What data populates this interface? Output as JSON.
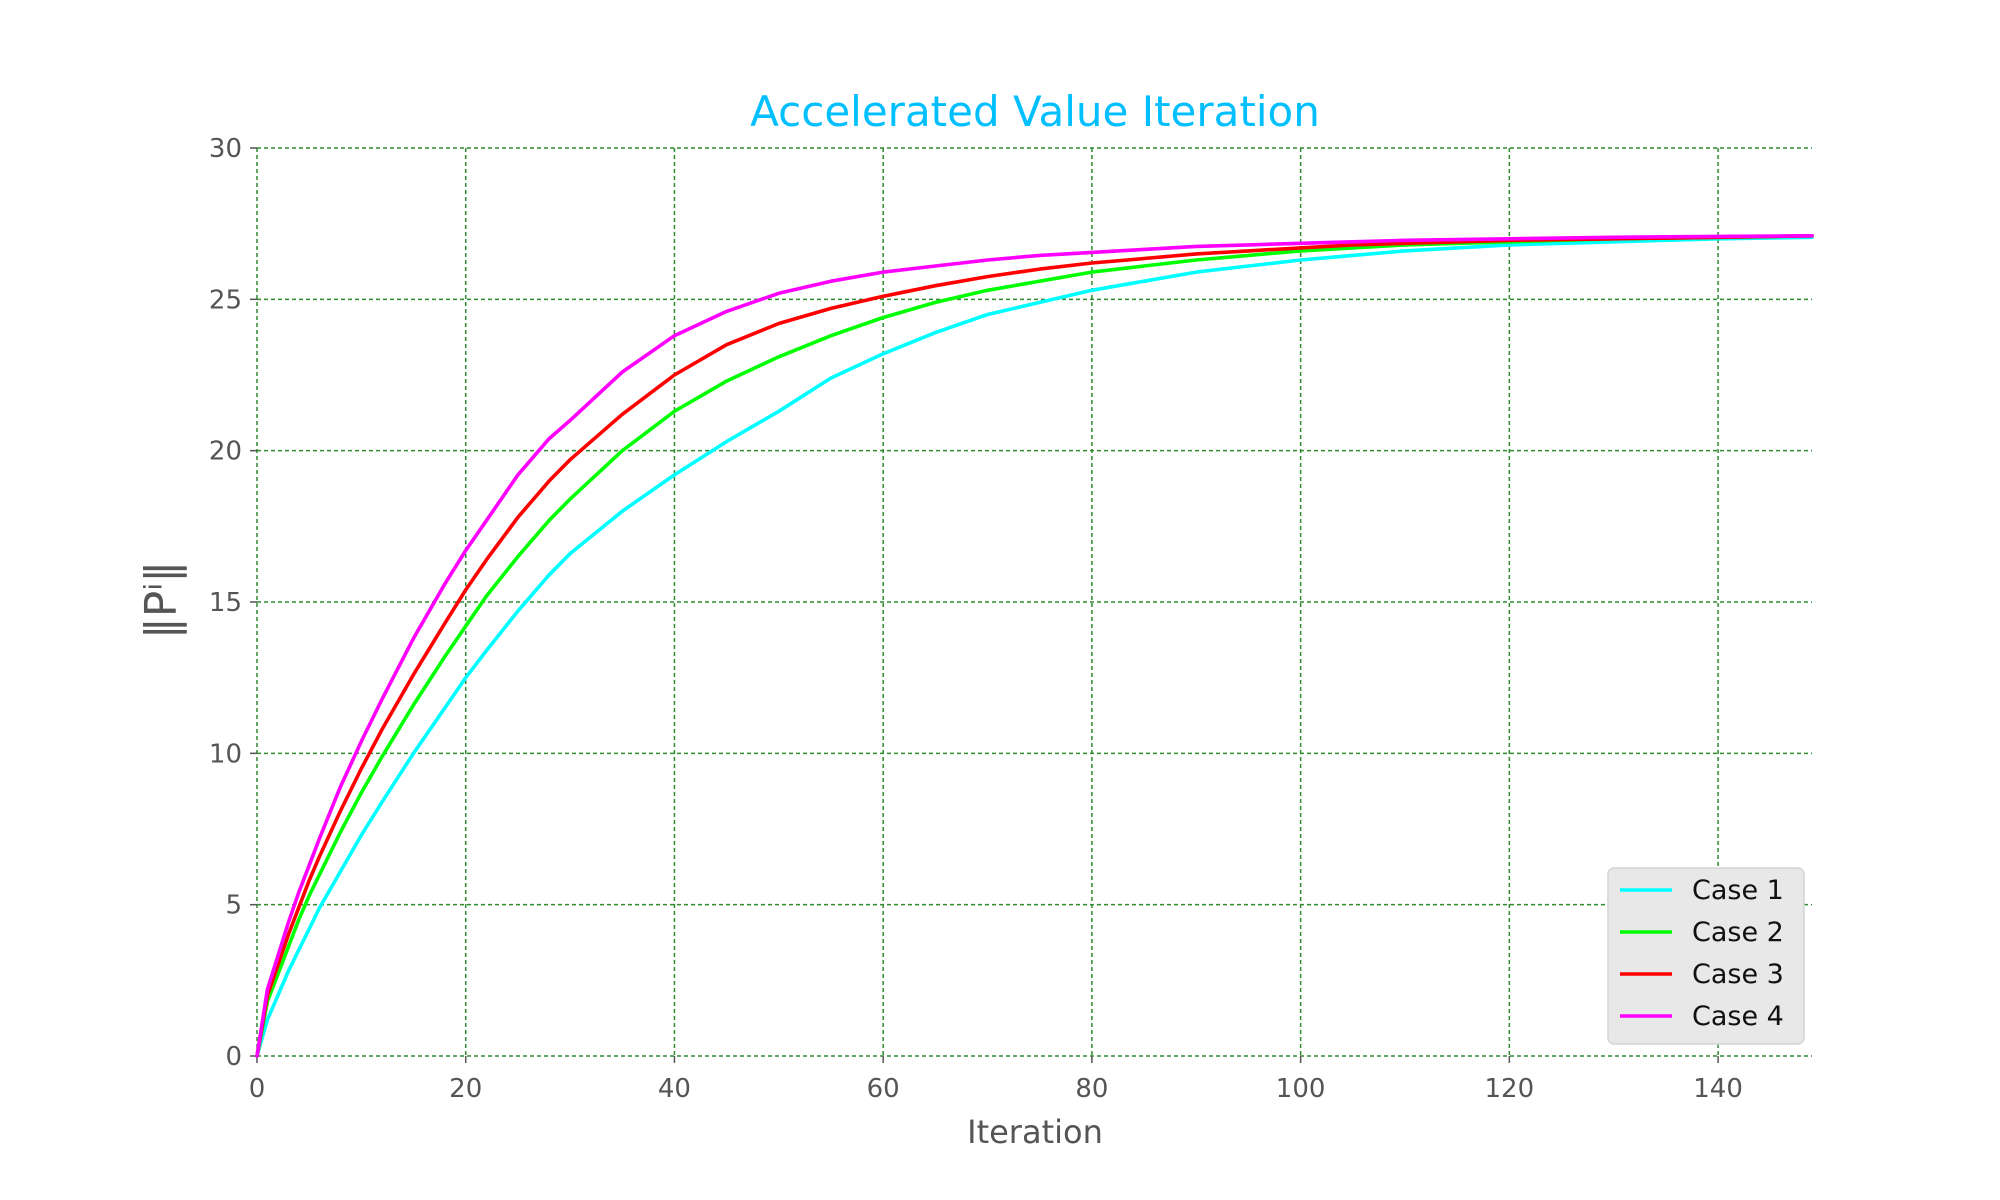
{
  "chart_data": {
    "type": "line",
    "title": "Accelerated Value Iteration",
    "title_color": "#00bfff",
    "xlabel": "Iteration",
    "ylabel": "‖Pⁱ‖",
    "xlim": [
      0,
      149
    ],
    "ylim": [
      0,
      30
    ],
    "xticks": [
      0,
      20,
      40,
      60,
      80,
      100,
      120,
      140
    ],
    "yticks": [
      0,
      5,
      10,
      15,
      20,
      25,
      30
    ],
    "grid": true,
    "grid_color": "#2e8b2e",
    "legend_position": "bottom-right",
    "x": [
      0,
      1,
      2,
      3,
      4,
      5,
      6,
      8,
      10,
      12,
      15,
      18,
      20,
      22,
      25,
      28,
      30,
      35,
      40,
      45,
      50,
      55,
      60,
      65,
      70,
      75,
      80,
      85,
      90,
      95,
      100,
      105,
      110,
      120,
      130,
      140,
      149
    ],
    "series": [
      {
        "name": "Case 1",
        "color": "#00ffff",
        "values": [
          0,
          1.2,
          2.0,
          2.8,
          3.5,
          4.2,
          4.9,
          6.1,
          7.3,
          8.4,
          10.0,
          11.5,
          12.5,
          13.4,
          14.7,
          15.9,
          16.6,
          18.0,
          19.2,
          20.3,
          21.3,
          22.4,
          23.2,
          23.9,
          24.5,
          24.9,
          25.3,
          25.6,
          25.9,
          26.1,
          26.3,
          26.45,
          26.6,
          26.8,
          26.9,
          27.0,
          27.05
        ]
      },
      {
        "name": "Case 2",
        "color": "#00ff00",
        "values": [
          0,
          1.8,
          2.7,
          3.6,
          4.5,
          5.3,
          6.0,
          7.4,
          8.7,
          9.9,
          11.6,
          13.2,
          14.2,
          15.2,
          16.5,
          17.7,
          18.4,
          20.0,
          21.3,
          22.3,
          23.1,
          23.8,
          24.4,
          24.9,
          25.3,
          25.6,
          25.9,
          26.1,
          26.3,
          26.45,
          26.6,
          26.7,
          26.8,
          26.9,
          27.0,
          27.05,
          27.1
        ]
      },
      {
        "name": "Case 3",
        "color": "#ff0000",
        "values": [
          0,
          2.0,
          3.0,
          4.0,
          4.9,
          5.8,
          6.6,
          8.1,
          9.5,
          10.8,
          12.6,
          14.3,
          15.4,
          16.4,
          17.8,
          19.0,
          19.7,
          21.2,
          22.5,
          23.5,
          24.2,
          24.7,
          25.1,
          25.45,
          25.75,
          26.0,
          26.2,
          26.35,
          26.5,
          26.6,
          26.7,
          26.8,
          26.85,
          26.95,
          27.0,
          27.05,
          27.1
        ]
      },
      {
        "name": "Case 4",
        "color": "#ff00ff",
        "values": [
          0,
          2.2,
          3.3,
          4.4,
          5.4,
          6.3,
          7.2,
          8.9,
          10.4,
          11.8,
          13.8,
          15.6,
          16.7,
          17.7,
          19.2,
          20.4,
          21.0,
          22.6,
          23.8,
          24.6,
          25.2,
          25.6,
          25.9,
          26.1,
          26.3,
          26.45,
          26.55,
          26.65,
          26.75,
          26.8,
          26.85,
          26.9,
          26.95,
          27.0,
          27.05,
          27.08,
          27.1
        ]
      }
    ]
  }
}
